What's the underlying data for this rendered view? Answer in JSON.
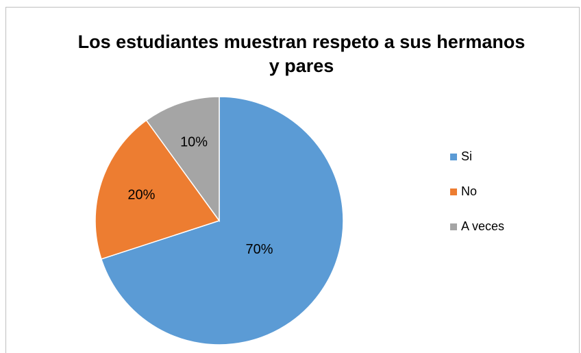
{
  "chart_data": {
    "type": "pie",
    "title": "Los estudiantes muestran respeto a sus hermanos y pares",
    "categories": [
      "Si",
      "No",
      "A veces"
    ],
    "values": [
      70,
      20,
      10
    ],
    "value_labels": [
      "70%",
      "20%",
      "10%"
    ],
    "colors": [
      "#5b9bd5",
      "#ed7d31",
      "#a5a5a5"
    ],
    "legend": "right"
  }
}
